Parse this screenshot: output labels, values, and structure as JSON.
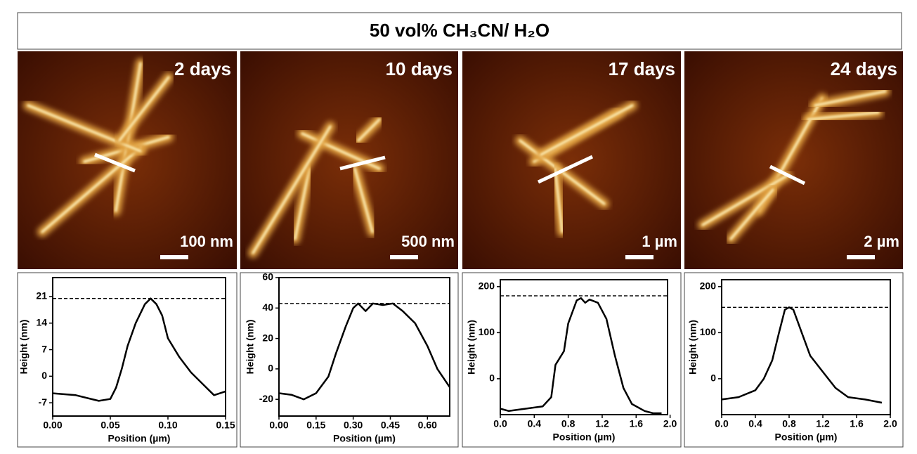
{
  "title": "50 vol% CH₃CN/ H₂O",
  "chart_data": [
    {
      "type": "line",
      "image_label": "2 days",
      "scale_bar": "100 nm",
      "xlabel": "Position (µm)",
      "ylabel": "Height (nm)",
      "color": "#000000",
      "x": [
        0,
        0.02,
        0.04,
        0.05,
        0.055,
        0.06,
        0.065,
        0.072,
        0.08,
        0.085,
        0.09,
        0.095,
        0.1,
        0.11,
        0.12,
        0.13,
        0.14,
        0.15
      ],
      "values": [
        -4.5,
        -5,
        -6.5,
        -6,
        -3,
        2,
        8,
        14,
        19,
        20.5,
        19,
        16,
        10,
        5,
        1,
        -2,
        -5,
        -4
      ],
      "reference_line": 20.5,
      "xlim": [
        0,
        0.15
      ],
      "ylim": [
        -10.5,
        26
      ],
      "xticks": [
        {
          "value": 0,
          "label": "0.00"
        },
        {
          "value": 0.05,
          "label": "0.05"
        },
        {
          "value": 0.1,
          "label": "0.10"
        },
        {
          "value": 0.15,
          "label": "0.15"
        }
      ],
      "yticks": [
        -7,
        0,
        7,
        14,
        21
      ]
    },
    {
      "type": "line",
      "image_label": "10 days",
      "scale_bar": "500 nm",
      "xlabel": "Position (µm)",
      "ylabel": "Height (nm)",
      "color": "#000000",
      "x": [
        0,
        0.05,
        0.1,
        0.15,
        0.2,
        0.23,
        0.27,
        0.3,
        0.32,
        0.35,
        0.38,
        0.42,
        0.46,
        0.5,
        0.55,
        0.6,
        0.64,
        0.69
      ],
      "values": [
        -16,
        -17,
        -20,
        -16,
        -5,
        10,
        28,
        40,
        43,
        38,
        43,
        42,
        43,
        38,
        30,
        15,
        0,
        -12
      ],
      "reference_line": 43,
      "xlim": [
        0,
        0.69
      ],
      "ylim": [
        -31,
        60
      ],
      "xticks": [
        {
          "value": 0,
          "label": "0.00"
        },
        {
          "value": 0.15,
          "label": "0.15"
        },
        {
          "value": 0.3,
          "label": "0.30"
        },
        {
          "value": 0.45,
          "label": "0.45"
        },
        {
          "value": 0.6,
          "label": "0.60"
        }
      ],
      "yticks": [
        -20,
        0,
        20,
        40,
        60
      ]
    },
    {
      "type": "line",
      "image_label": "17 days",
      "scale_bar": "1 µm",
      "xlabel": "Position (µm)",
      "ylabel": "Height (nm)",
      "color": "#000000",
      "x": [
        0,
        0.1,
        0.3,
        0.5,
        0.6,
        0.65,
        0.75,
        0.8,
        0.9,
        0.95,
        1.0,
        1.05,
        1.15,
        1.25,
        1.35,
        1.45,
        1.55,
        1.7,
        1.8,
        1.9
      ],
      "values": [
        -65,
        -70,
        -65,
        -60,
        -40,
        30,
        60,
        120,
        170,
        175,
        165,
        172,
        165,
        130,
        50,
        -20,
        -55,
        -70,
        -75,
        -75
      ],
      "reference_line": 180,
      "xlim": [
        0,
        1.97
      ],
      "ylim": [
        -78,
        215
      ],
      "xticks": [
        {
          "value": 0,
          "label": "0.0"
        },
        {
          "value": 0.4,
          "label": "0.4"
        },
        {
          "value": 0.8,
          "label": "0.8"
        },
        {
          "value": 1.2,
          "label": "1.2"
        },
        {
          "value": 1.6,
          "label": "1.6"
        },
        {
          "value": 2,
          "label": "2.0"
        }
      ],
      "yticks": [
        0,
        100,
        200
      ]
    },
    {
      "type": "line",
      "image_label": "24 days",
      "scale_bar": "2 µm",
      "xlabel": "Position (µm)",
      "ylabel": "Height (nm)",
      "color": "#000000",
      "x": [
        0,
        0.2,
        0.4,
        0.5,
        0.6,
        0.68,
        0.75,
        0.8,
        0.85,
        0.95,
        1.05,
        1.2,
        1.35,
        1.5,
        1.7,
        1.9
      ],
      "values": [
        -45,
        -40,
        -25,
        0,
        40,
        100,
        150,
        155,
        150,
        100,
        50,
        15,
        -20,
        -40,
        -45,
        -52
      ],
      "reference_line": 155,
      "xlim": [
        0,
        2
      ],
      "ylim": [
        -78,
        215
      ],
      "xticks": [
        {
          "value": 0,
          "label": "0.0"
        },
        {
          "value": 0.4,
          "label": "0.4"
        },
        {
          "value": 0.8,
          "label": "0.8"
        },
        {
          "value": 1.2,
          "label": "1.2"
        },
        {
          "value": 1.6,
          "label": "1.6"
        },
        {
          "value": 2,
          "label": "2.0"
        }
      ],
      "yticks": [
        0,
        100,
        200
      ]
    }
  ]
}
